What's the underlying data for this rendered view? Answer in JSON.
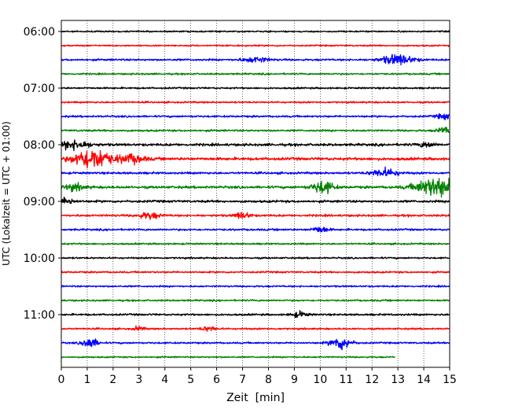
{
  "chart_data": {
    "type": "line",
    "title": "",
    "xlabel": "Zeit  [min]",
    "ylabel": "UTC (Lokalzeit = UTC + 01:00)",
    "xlim": [
      0,
      15
    ],
    "x_ticks": [
      "0",
      "1",
      "2",
      "3",
      "4",
      "5",
      "6",
      "7",
      "8",
      "9",
      "10",
      "11",
      "12",
      "13",
      "14",
      "15"
    ],
    "y_tick_labels": [
      "06:00",
      "07:00",
      "08:00",
      "09:00",
      "10:00",
      "11:00"
    ],
    "grid": "vertical dotted lines at each minute",
    "legend": "none",
    "trace_interval_minutes": 15,
    "trace_colors": [
      "#000000",
      "#ff0000",
      "#0000ff",
      "#008000"
    ],
    "traces": [
      {
        "start": "06:00",
        "color": "#000000",
        "end_min": 15,
        "noise": 0.7,
        "events": []
      },
      {
        "start": "06:15",
        "color": "#ff0000",
        "end_min": 15,
        "noise": 0.7,
        "events": []
      },
      {
        "start": "06:30",
        "color": "#0000ff",
        "end_min": 15,
        "noise": 0.9,
        "events": [
          {
            "t": 7.5,
            "amp": 2.5,
            "w": 0.5
          },
          {
            "t": 13.0,
            "amp": 5,
            "w": 0.6
          }
        ]
      },
      {
        "start": "06:45",
        "color": "#008000",
        "end_min": 15,
        "noise": 0.8,
        "events": []
      },
      {
        "start": "07:00",
        "color": "#000000",
        "end_min": 15,
        "noise": 0.8,
        "events": []
      },
      {
        "start": "07:15",
        "color": "#ff0000",
        "end_min": 15,
        "noise": 0.8,
        "events": []
      },
      {
        "start": "07:30",
        "color": "#0000ff",
        "end_min": 15,
        "noise": 0.9,
        "events": [
          {
            "t": 14.8,
            "amp": 2.5,
            "w": 0.3
          }
        ]
      },
      {
        "start": "07:45",
        "color": "#008000",
        "end_min": 15,
        "noise": 0.9,
        "events": [
          {
            "t": 14.8,
            "amp": 3,
            "w": 0.3
          }
        ]
      },
      {
        "start": "08:00",
        "color": "#000000",
        "end_min": 15,
        "noise": 1.2,
        "events": [
          {
            "t": 0.5,
            "amp": 4,
            "w": 0.6
          },
          {
            "t": 14.1,
            "amp": 2.5,
            "w": 0.3
          }
        ]
      },
      {
        "start": "08:15",
        "color": "#ff0000",
        "end_min": 15,
        "noise": 1.3,
        "events": [
          {
            "t": 1.2,
            "amp": 10,
            "w": 0.7
          },
          {
            "t": 2.7,
            "amp": 4,
            "w": 0.5
          }
        ]
      },
      {
        "start": "08:30",
        "color": "#0000ff",
        "end_min": 15,
        "noise": 1.0,
        "events": [
          {
            "t": 12.5,
            "amp": 4,
            "w": 0.5
          }
        ]
      },
      {
        "start": "08:45",
        "color": "#008000",
        "end_min": 15,
        "noise": 1.2,
        "events": [
          {
            "t": 0.5,
            "amp": 3,
            "w": 0.4
          },
          {
            "t": 10.1,
            "amp": 6,
            "w": 0.4
          },
          {
            "t": 14.5,
            "amp": 9,
            "w": 0.8
          }
        ]
      },
      {
        "start": "09:00",
        "color": "#000000",
        "end_min": 15,
        "noise": 1.1,
        "events": [
          {
            "t": 0.2,
            "amp": 3,
            "w": 0.3
          }
        ]
      },
      {
        "start": "09:15",
        "color": "#ff0000",
        "end_min": 15,
        "noise": 1.0,
        "events": [
          {
            "t": 3.4,
            "amp": 3,
            "w": 0.4
          },
          {
            "t": 7.0,
            "amp": 3,
            "w": 0.3
          }
        ]
      },
      {
        "start": "09:30",
        "color": "#0000ff",
        "end_min": 15,
        "noise": 0.9,
        "events": [
          {
            "t": 10.0,
            "amp": 3,
            "w": 0.3
          }
        ]
      },
      {
        "start": "09:45",
        "color": "#008000",
        "end_min": 15,
        "noise": 0.8,
        "events": []
      },
      {
        "start": "10:00",
        "color": "#000000",
        "end_min": 15,
        "noise": 0.8,
        "events": []
      },
      {
        "start": "10:15",
        "color": "#ff0000",
        "end_min": 15,
        "noise": 0.8,
        "events": []
      },
      {
        "start": "10:30",
        "color": "#0000ff",
        "end_min": 15,
        "noise": 0.8,
        "events": []
      },
      {
        "start": "10:45",
        "color": "#008000",
        "end_min": 15,
        "noise": 0.8,
        "events": []
      },
      {
        "start": "11:00",
        "color": "#000000",
        "end_min": 15,
        "noise": 0.9,
        "events": [
          {
            "t": 9.2,
            "amp": 2.5,
            "w": 0.3
          }
        ]
      },
      {
        "start": "11:15",
        "color": "#ff0000",
        "end_min": 15,
        "noise": 0.8,
        "events": [
          {
            "t": 3.0,
            "amp": 2,
            "w": 0.2
          },
          {
            "t": 5.7,
            "amp": 2,
            "w": 0.3
          }
        ]
      },
      {
        "start": "11:30",
        "color": "#0000ff",
        "end_min": 15,
        "noise": 0.8,
        "events": [
          {
            "t": 1.1,
            "amp": 5,
            "w": 0.3
          },
          {
            "t": 10.8,
            "amp": 6,
            "w": 0.4
          }
        ]
      },
      {
        "start": "11:45",
        "color": "#008000",
        "end_min": 12.9,
        "noise": 0.7,
        "events": []
      }
    ]
  }
}
